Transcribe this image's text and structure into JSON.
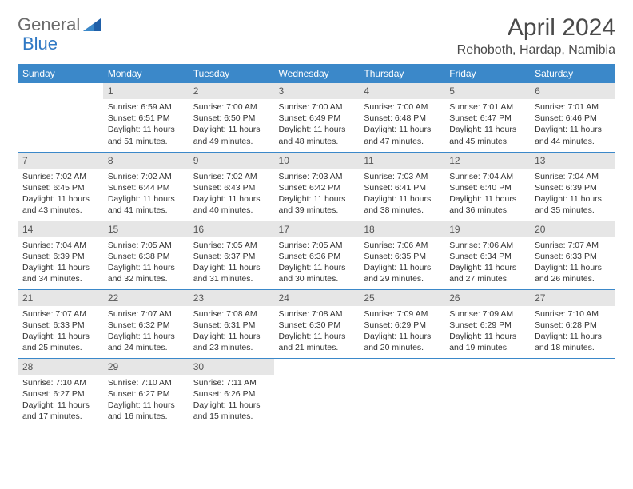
{
  "brand": {
    "part1": "General",
    "part2": "Blue"
  },
  "title": "April 2024",
  "location": "Rehoboth, Hardap, Namibia",
  "colors": {
    "header_bg": "#3b88c9",
    "header_text": "#ffffff",
    "daynum_bg": "#e6e6e6",
    "border": "#3b88c9",
    "text": "#333333",
    "logo_gray": "#6b6b6b",
    "logo_blue": "#2f78c4"
  },
  "weekdays": [
    "Sunday",
    "Monday",
    "Tuesday",
    "Wednesday",
    "Thursday",
    "Friday",
    "Saturday"
  ],
  "weeks": [
    [
      {
        "empty": true
      },
      {
        "day": "1",
        "sunrise": "Sunrise: 6:59 AM",
        "sunset": "Sunset: 6:51 PM",
        "daylight1": "Daylight: 11 hours",
        "daylight2": "and 51 minutes."
      },
      {
        "day": "2",
        "sunrise": "Sunrise: 7:00 AM",
        "sunset": "Sunset: 6:50 PM",
        "daylight1": "Daylight: 11 hours",
        "daylight2": "and 49 minutes."
      },
      {
        "day": "3",
        "sunrise": "Sunrise: 7:00 AM",
        "sunset": "Sunset: 6:49 PM",
        "daylight1": "Daylight: 11 hours",
        "daylight2": "and 48 minutes."
      },
      {
        "day": "4",
        "sunrise": "Sunrise: 7:00 AM",
        "sunset": "Sunset: 6:48 PM",
        "daylight1": "Daylight: 11 hours",
        "daylight2": "and 47 minutes."
      },
      {
        "day": "5",
        "sunrise": "Sunrise: 7:01 AM",
        "sunset": "Sunset: 6:47 PM",
        "daylight1": "Daylight: 11 hours",
        "daylight2": "and 45 minutes."
      },
      {
        "day": "6",
        "sunrise": "Sunrise: 7:01 AM",
        "sunset": "Sunset: 6:46 PM",
        "daylight1": "Daylight: 11 hours",
        "daylight2": "and 44 minutes."
      }
    ],
    [
      {
        "day": "7",
        "sunrise": "Sunrise: 7:02 AM",
        "sunset": "Sunset: 6:45 PM",
        "daylight1": "Daylight: 11 hours",
        "daylight2": "and 43 minutes."
      },
      {
        "day": "8",
        "sunrise": "Sunrise: 7:02 AM",
        "sunset": "Sunset: 6:44 PM",
        "daylight1": "Daylight: 11 hours",
        "daylight2": "and 41 minutes."
      },
      {
        "day": "9",
        "sunrise": "Sunrise: 7:02 AM",
        "sunset": "Sunset: 6:43 PM",
        "daylight1": "Daylight: 11 hours",
        "daylight2": "and 40 minutes."
      },
      {
        "day": "10",
        "sunrise": "Sunrise: 7:03 AM",
        "sunset": "Sunset: 6:42 PM",
        "daylight1": "Daylight: 11 hours",
        "daylight2": "and 39 minutes."
      },
      {
        "day": "11",
        "sunrise": "Sunrise: 7:03 AM",
        "sunset": "Sunset: 6:41 PM",
        "daylight1": "Daylight: 11 hours",
        "daylight2": "and 38 minutes."
      },
      {
        "day": "12",
        "sunrise": "Sunrise: 7:04 AM",
        "sunset": "Sunset: 6:40 PM",
        "daylight1": "Daylight: 11 hours",
        "daylight2": "and 36 minutes."
      },
      {
        "day": "13",
        "sunrise": "Sunrise: 7:04 AM",
        "sunset": "Sunset: 6:39 PM",
        "daylight1": "Daylight: 11 hours",
        "daylight2": "and 35 minutes."
      }
    ],
    [
      {
        "day": "14",
        "sunrise": "Sunrise: 7:04 AM",
        "sunset": "Sunset: 6:39 PM",
        "daylight1": "Daylight: 11 hours",
        "daylight2": "and 34 minutes."
      },
      {
        "day": "15",
        "sunrise": "Sunrise: 7:05 AM",
        "sunset": "Sunset: 6:38 PM",
        "daylight1": "Daylight: 11 hours",
        "daylight2": "and 32 minutes."
      },
      {
        "day": "16",
        "sunrise": "Sunrise: 7:05 AM",
        "sunset": "Sunset: 6:37 PM",
        "daylight1": "Daylight: 11 hours",
        "daylight2": "and 31 minutes."
      },
      {
        "day": "17",
        "sunrise": "Sunrise: 7:05 AM",
        "sunset": "Sunset: 6:36 PM",
        "daylight1": "Daylight: 11 hours",
        "daylight2": "and 30 minutes."
      },
      {
        "day": "18",
        "sunrise": "Sunrise: 7:06 AM",
        "sunset": "Sunset: 6:35 PM",
        "daylight1": "Daylight: 11 hours",
        "daylight2": "and 29 minutes."
      },
      {
        "day": "19",
        "sunrise": "Sunrise: 7:06 AM",
        "sunset": "Sunset: 6:34 PM",
        "daylight1": "Daylight: 11 hours",
        "daylight2": "and 27 minutes."
      },
      {
        "day": "20",
        "sunrise": "Sunrise: 7:07 AM",
        "sunset": "Sunset: 6:33 PM",
        "daylight1": "Daylight: 11 hours",
        "daylight2": "and 26 minutes."
      }
    ],
    [
      {
        "day": "21",
        "sunrise": "Sunrise: 7:07 AM",
        "sunset": "Sunset: 6:33 PM",
        "daylight1": "Daylight: 11 hours",
        "daylight2": "and 25 minutes."
      },
      {
        "day": "22",
        "sunrise": "Sunrise: 7:07 AM",
        "sunset": "Sunset: 6:32 PM",
        "daylight1": "Daylight: 11 hours",
        "daylight2": "and 24 minutes."
      },
      {
        "day": "23",
        "sunrise": "Sunrise: 7:08 AM",
        "sunset": "Sunset: 6:31 PM",
        "daylight1": "Daylight: 11 hours",
        "daylight2": "and 23 minutes."
      },
      {
        "day": "24",
        "sunrise": "Sunrise: 7:08 AM",
        "sunset": "Sunset: 6:30 PM",
        "daylight1": "Daylight: 11 hours",
        "daylight2": "and 21 minutes."
      },
      {
        "day": "25",
        "sunrise": "Sunrise: 7:09 AM",
        "sunset": "Sunset: 6:29 PM",
        "daylight1": "Daylight: 11 hours",
        "daylight2": "and 20 minutes."
      },
      {
        "day": "26",
        "sunrise": "Sunrise: 7:09 AM",
        "sunset": "Sunset: 6:29 PM",
        "daylight1": "Daylight: 11 hours",
        "daylight2": "and 19 minutes."
      },
      {
        "day": "27",
        "sunrise": "Sunrise: 7:10 AM",
        "sunset": "Sunset: 6:28 PM",
        "daylight1": "Daylight: 11 hours",
        "daylight2": "and 18 minutes."
      }
    ],
    [
      {
        "day": "28",
        "sunrise": "Sunrise: 7:10 AM",
        "sunset": "Sunset: 6:27 PM",
        "daylight1": "Daylight: 11 hours",
        "daylight2": "and 17 minutes."
      },
      {
        "day": "29",
        "sunrise": "Sunrise: 7:10 AM",
        "sunset": "Sunset: 6:27 PM",
        "daylight1": "Daylight: 11 hours",
        "daylight2": "and 16 minutes."
      },
      {
        "day": "30",
        "sunrise": "Sunrise: 7:11 AM",
        "sunset": "Sunset: 6:26 PM",
        "daylight1": "Daylight: 11 hours",
        "daylight2": "and 15 minutes."
      },
      {
        "empty": true
      },
      {
        "empty": true
      },
      {
        "empty": true
      },
      {
        "empty": true
      }
    ]
  ]
}
